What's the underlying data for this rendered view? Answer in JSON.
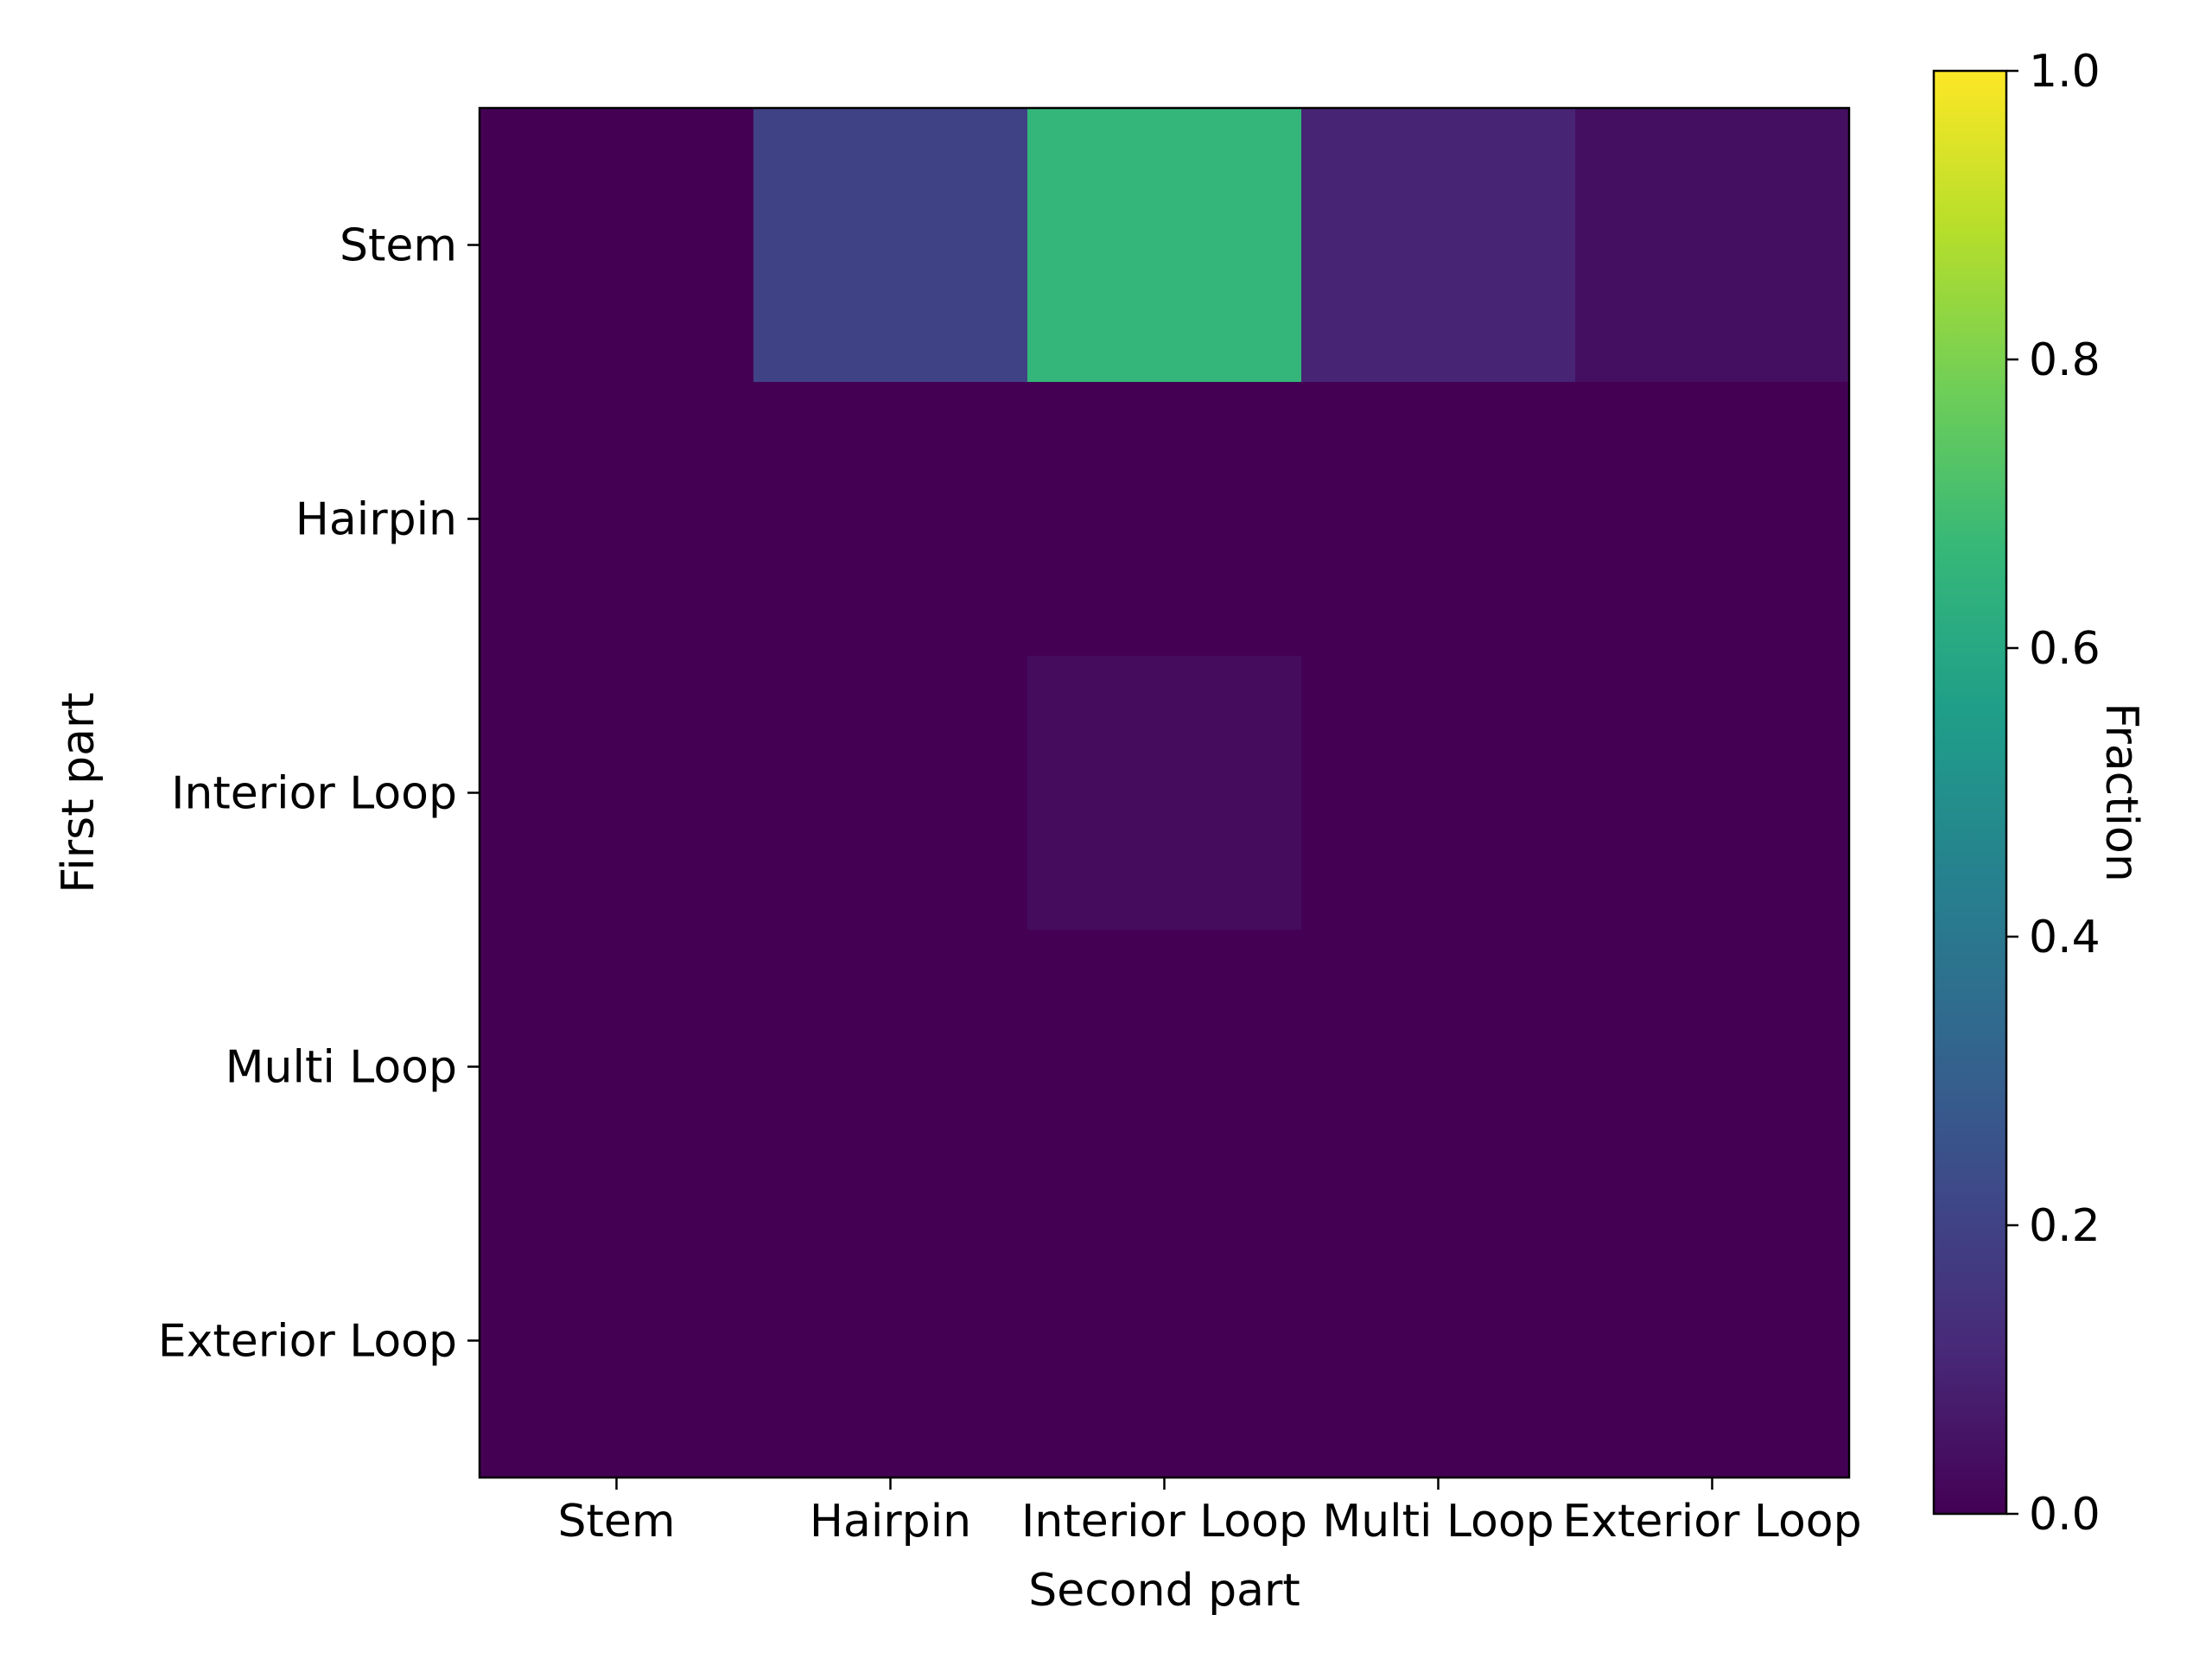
{
  "chart_data": {
    "type": "heatmap",
    "xlabel": "Second part",
    "ylabel": "First part",
    "x_categories": [
      "Stem",
      "Hairpin",
      "Interior Loop",
      "Multi Loop",
      "Exterior Loop"
    ],
    "y_categories": [
      "Stem",
      "Hairpin",
      "Interior Loop",
      "Multi Loop",
      "Exterior Loop"
    ],
    "values": [
      [
        0.0,
        0.2,
        0.66,
        0.1,
        0.04
      ],
      [
        0.0,
        0.0,
        0.0,
        0.0,
        0.0
      ],
      [
        0.0,
        0.0,
        0.03,
        0.0,
        0.0
      ],
      [
        0.0,
        0.0,
        0.0,
        0.0,
        0.0
      ],
      [
        0.0,
        0.0,
        0.0,
        0.0,
        0.0
      ]
    ],
    "colormap": "viridis",
    "colorbar": {
      "label": "Fraction",
      "range": [
        0.0,
        1.0
      ],
      "ticks": [
        "0.0",
        "0.2",
        "0.4",
        "0.6",
        "0.8",
        "1.0"
      ]
    }
  }
}
